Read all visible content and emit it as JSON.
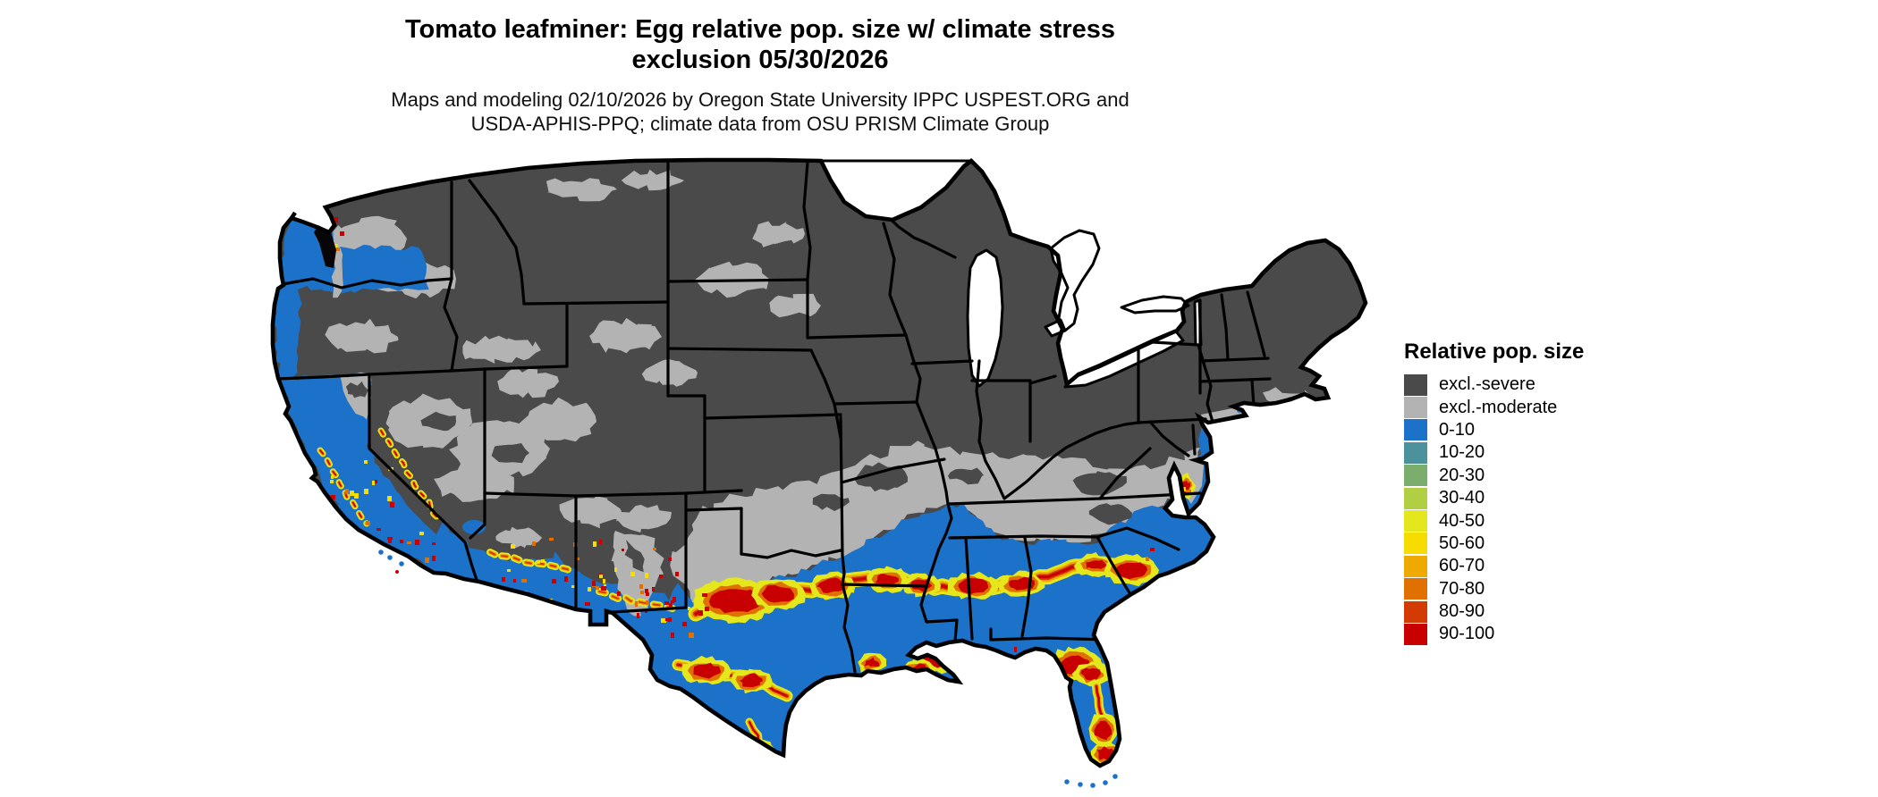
{
  "title": {
    "line1": "Tomato leafminer: Egg relative pop. size w/ climate stress",
    "line2": "exclusion 05/30/2026"
  },
  "subtitle": {
    "line1": "Maps and modeling 02/10/2026 by Oregon State University IPPC USPEST.ORG and",
    "line2": "USDA-APHIS-PPQ; climate data from OSU PRISM Climate Group"
  },
  "legend": {
    "title": "Relative pop. size",
    "items": [
      {
        "label": "excl.-severe",
        "color": "#4a4a4a"
      },
      {
        "label": "excl.-moderate",
        "color": "#b3b3b3"
      },
      {
        "label": "0-10",
        "color": "#1b72c8"
      },
      {
        "label": "10-20",
        "color": "#4b929c"
      },
      {
        "label": "20-30",
        "color": "#7bad6d"
      },
      {
        "label": "30-40",
        "color": "#b2cf44"
      },
      {
        "label": "40-50",
        "color": "#e3e71c"
      },
      {
        "label": "50-60",
        "color": "#f7dc00"
      },
      {
        "label": "60-70",
        "color": "#efaa02"
      },
      {
        "label": "70-80",
        "color": "#e07101"
      },
      {
        "label": "80-90",
        "color": "#d43b02"
      },
      {
        "label": "90-100",
        "color": "#c80002"
      }
    ]
  },
  "map_meta": {
    "border_color": "#000000",
    "water_color": "#ffffff"
  }
}
